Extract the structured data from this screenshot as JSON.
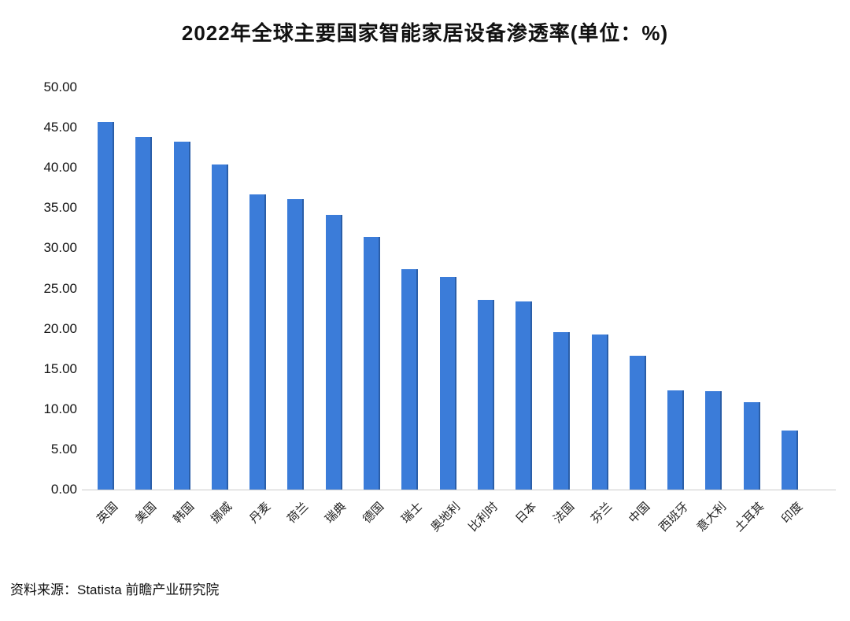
{
  "title": "2022年全球主要国家智能家居设备渗透率(单位：%)",
  "source": "资料来源：Statista 前瞻产业研究院",
  "colors": {
    "bar": "#3b7cd9",
    "bar_edge": "#2a5ea8",
    "axis_line": "#cccccc",
    "text": "#111111"
  },
  "chart_data": {
    "type": "bar",
    "title": "2022年全球主要国家智能家居设备渗透率(单位：%)",
    "categories": [
      "英国",
      "美国",
      "韩国",
      "挪威",
      "丹麦",
      "荷兰",
      "瑞典",
      "德国",
      "瑞士",
      "奥地利",
      "比利时",
      "日本",
      "法国",
      "芬兰",
      "中国",
      "西班牙",
      "意大利",
      "土耳其",
      "印度"
    ],
    "values": [
      45.7,
      43.8,
      43.2,
      40.4,
      36.7,
      36.1,
      34.1,
      31.4,
      27.4,
      26.4,
      23.6,
      23.4,
      19.6,
      19.3,
      16.6,
      12.3,
      12.2,
      10.9,
      7.3
    ],
    "xlabel": "",
    "ylabel": "",
    "unit": "%",
    "ylim": [
      0,
      50
    ],
    "ytick_step": 5,
    "ytick_decimals": 2,
    "grid": false,
    "legend": "none",
    "source": "资料来源：Statista 前瞻产业研究院"
  }
}
